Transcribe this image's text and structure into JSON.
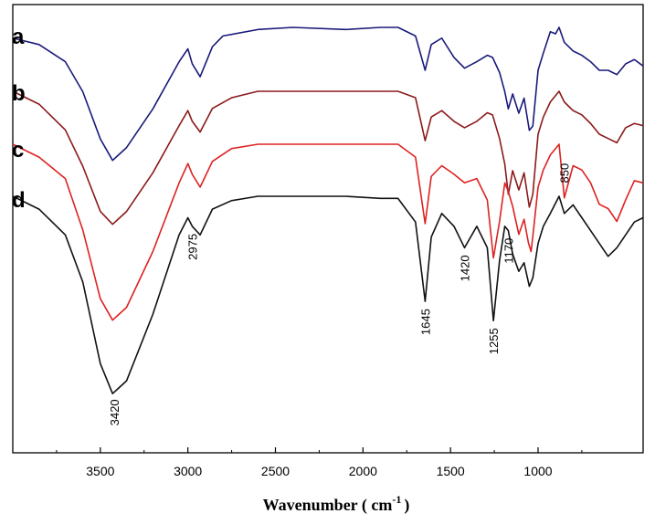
{
  "chart_data": {
    "type": "line",
    "title": "",
    "xlabel": "Wavenumber ( cm",
    "xlabel_superscript": "-1",
    "xlabel_close": ")",
    "ylabel": "",
    "x_reversed": true,
    "xlim": [
      4000,
      400
    ],
    "x_ticks": [
      3500,
      3000,
      2500,
      2000,
      1500,
      1000
    ],
    "x_tick_labels": [
      "3500",
      "3000",
      "2500",
      "2000",
      "1500",
      "1000"
    ],
    "y_ticks_shown": false,
    "grid": false,
    "legend": "inline-left",
    "series": [
      {
        "name": "a",
        "color": "#1a1a7a",
        "points": [
          [
            4000,
            0.05
          ],
          [
            3850,
            0.08
          ],
          [
            3700,
            0.16
          ],
          [
            3600,
            0.3
          ],
          [
            3500,
            0.52
          ],
          [
            3430,
            0.62
          ],
          [
            3350,
            0.56
          ],
          [
            3200,
            0.38
          ],
          [
            3050,
            0.16
          ],
          [
            3000,
            0.1
          ],
          [
            2975,
            0.17
          ],
          [
            2930,
            0.23
          ],
          [
            2860,
            0.09
          ],
          [
            2800,
            0.04
          ],
          [
            2600,
            0.01
          ],
          [
            2400,
            0.0
          ],
          [
            2100,
            0.01
          ],
          [
            1900,
            0.0
          ],
          [
            1800,
            0.0
          ],
          [
            1700,
            0.04
          ],
          [
            1645,
            0.2
          ],
          [
            1610,
            0.08
          ],
          [
            1550,
            0.05
          ],
          [
            1480,
            0.14
          ],
          [
            1420,
            0.19
          ],
          [
            1350,
            0.16
          ],
          [
            1290,
            0.13
          ],
          [
            1260,
            0.14
          ],
          [
            1220,
            0.21
          ],
          [
            1190,
            0.3
          ],
          [
            1170,
            0.38
          ],
          [
            1145,
            0.31
          ],
          [
            1110,
            0.4
          ],
          [
            1080,
            0.33
          ],
          [
            1050,
            0.48
          ],
          [
            1030,
            0.46
          ],
          [
            1000,
            0.2
          ],
          [
            970,
            0.12
          ],
          [
            930,
            0.02
          ],
          [
            900,
            0.03
          ],
          [
            880,
            0.0
          ],
          [
            850,
            0.07
          ],
          [
            800,
            0.11
          ],
          [
            750,
            0.13
          ],
          [
            700,
            0.16
          ],
          [
            650,
            0.2
          ],
          [
            600,
            0.2
          ],
          [
            550,
            0.22
          ],
          [
            500,
            0.17
          ],
          [
            450,
            0.15
          ],
          [
            400,
            0.18
          ]
        ]
      },
      {
        "name": "b",
        "color": "#8b1a1a",
        "points": [
          [
            4000,
            0.0
          ],
          [
            3850,
            0.06
          ],
          [
            3700,
            0.18
          ],
          [
            3600,
            0.35
          ],
          [
            3500,
            0.56
          ],
          [
            3430,
            0.62
          ],
          [
            3350,
            0.56
          ],
          [
            3200,
            0.38
          ],
          [
            3050,
            0.16
          ],
          [
            3000,
            0.09
          ],
          [
            2975,
            0.14
          ],
          [
            2930,
            0.19
          ],
          [
            2860,
            0.08
          ],
          [
            2750,
            0.03
          ],
          [
            2600,
            0.0
          ],
          [
            2400,
            0.0
          ],
          [
            2100,
            0.0
          ],
          [
            1900,
            0.0
          ],
          [
            1800,
            0.0
          ],
          [
            1700,
            0.03
          ],
          [
            1645,
            0.23
          ],
          [
            1610,
            0.12
          ],
          [
            1550,
            0.09
          ],
          [
            1480,
            0.14
          ],
          [
            1420,
            0.17
          ],
          [
            1350,
            0.14
          ],
          [
            1290,
            0.1
          ],
          [
            1260,
            0.11
          ],
          [
            1220,
            0.22
          ],
          [
            1190,
            0.34
          ],
          [
            1170,
            0.48
          ],
          [
            1145,
            0.37
          ],
          [
            1110,
            0.46
          ],
          [
            1080,
            0.38
          ],
          [
            1050,
            0.54
          ],
          [
            1030,
            0.48
          ],
          [
            1000,
            0.2
          ],
          [
            970,
            0.12
          ],
          [
            930,
            0.05
          ],
          [
            880,
            0.0
          ],
          [
            850,
            0.05
          ],
          [
            800,
            0.09
          ],
          [
            750,
            0.11
          ],
          [
            700,
            0.15
          ],
          [
            650,
            0.2
          ],
          [
            600,
            0.22
          ],
          [
            550,
            0.24
          ],
          [
            500,
            0.17
          ],
          [
            450,
            0.15
          ],
          [
            400,
            0.16
          ]
        ]
      },
      {
        "name": "c",
        "color": "#dd2222",
        "points": [
          [
            4000,
            0.0
          ],
          [
            3850,
            0.06
          ],
          [
            3700,
            0.16
          ],
          [
            3600,
            0.4
          ],
          [
            3500,
            0.72
          ],
          [
            3430,
            0.82
          ],
          [
            3350,
            0.76
          ],
          [
            3200,
            0.5
          ],
          [
            3050,
            0.18
          ],
          [
            3000,
            0.09
          ],
          [
            2975,
            0.14
          ],
          [
            2930,
            0.2
          ],
          [
            2860,
            0.08
          ],
          [
            2750,
            0.02
          ],
          [
            2600,
            0.0
          ],
          [
            2400,
            0.0
          ],
          [
            2100,
            0.0
          ],
          [
            1900,
            0.0
          ],
          [
            1800,
            0.0
          ],
          [
            1700,
            0.06
          ],
          [
            1645,
            0.37
          ],
          [
            1610,
            0.15
          ],
          [
            1550,
            0.1
          ],
          [
            1480,
            0.14
          ],
          [
            1420,
            0.18
          ],
          [
            1350,
            0.16
          ],
          [
            1290,
            0.26
          ],
          [
            1255,
            0.53
          ],
          [
            1220,
            0.36
          ],
          [
            1190,
            0.18
          ],
          [
            1170,
            0.22
          ],
          [
            1145,
            0.29
          ],
          [
            1110,
            0.42
          ],
          [
            1080,
            0.35
          ],
          [
            1055,
            0.46
          ],
          [
            1040,
            0.5
          ],
          [
            1030,
            0.43
          ],
          [
            1000,
            0.2
          ],
          [
            970,
            0.12
          ],
          [
            930,
            0.05
          ],
          [
            880,
            0.0
          ],
          [
            850,
            0.25
          ],
          [
            800,
            0.1
          ],
          [
            750,
            0.12
          ],
          [
            700,
            0.18
          ],
          [
            650,
            0.28
          ],
          [
            600,
            0.3
          ],
          [
            550,
            0.36
          ],
          [
            500,
            0.26
          ],
          [
            450,
            0.17
          ],
          [
            400,
            0.18
          ]
        ]
      },
      {
        "name": "d",
        "color": "#111111",
        "points": [
          [
            4000,
            0.0
          ],
          [
            3850,
            0.06
          ],
          [
            3700,
            0.18
          ],
          [
            3600,
            0.4
          ],
          [
            3500,
            0.78
          ],
          [
            3430,
            0.92
          ],
          [
            3350,
            0.86
          ],
          [
            3200,
            0.55
          ],
          [
            3050,
            0.18
          ],
          [
            3000,
            0.1
          ],
          [
            2975,
            0.14
          ],
          [
            2930,
            0.18
          ],
          [
            2860,
            0.06
          ],
          [
            2750,
            0.02
          ],
          [
            2600,
            0.0
          ],
          [
            2400,
            0.0
          ],
          [
            2100,
            0.0
          ],
          [
            1900,
            0.01
          ],
          [
            1800,
            0.01
          ],
          [
            1700,
            0.12
          ],
          [
            1645,
            0.49
          ],
          [
            1610,
            0.19
          ],
          [
            1550,
            0.08
          ],
          [
            1480,
            0.14
          ],
          [
            1420,
            0.24
          ],
          [
            1350,
            0.14
          ],
          [
            1290,
            0.24
          ],
          [
            1255,
            0.58
          ],
          [
            1220,
            0.3
          ],
          [
            1190,
            0.14
          ],
          [
            1170,
            0.16
          ],
          [
            1145,
            0.27
          ],
          [
            1110,
            0.35
          ],
          [
            1080,
            0.31
          ],
          [
            1050,
            0.42
          ],
          [
            1030,
            0.38
          ],
          [
            1000,
            0.22
          ],
          [
            970,
            0.14
          ],
          [
            930,
            0.08
          ],
          [
            880,
            0.0
          ],
          [
            850,
            0.08
          ],
          [
            800,
            0.04
          ],
          [
            750,
            0.1
          ],
          [
            700,
            0.16
          ],
          [
            650,
            0.22
          ],
          [
            600,
            0.28
          ],
          [
            550,
            0.24
          ],
          [
            500,
            0.18
          ],
          [
            450,
            0.12
          ],
          [
            400,
            0.1
          ]
        ]
      }
    ],
    "peak_annotations": [
      {
        "label": "3420",
        "x": 3420
      },
      {
        "label": "2975",
        "x": 2975
      },
      {
        "label": "1645",
        "x": 1645
      },
      {
        "label": "1420",
        "x": 1420
      },
      {
        "label": "1255",
        "x": 1255
      },
      {
        "label": "1170",
        "x": 1170
      },
      {
        "label": "850",
        "x": 850
      }
    ]
  }
}
